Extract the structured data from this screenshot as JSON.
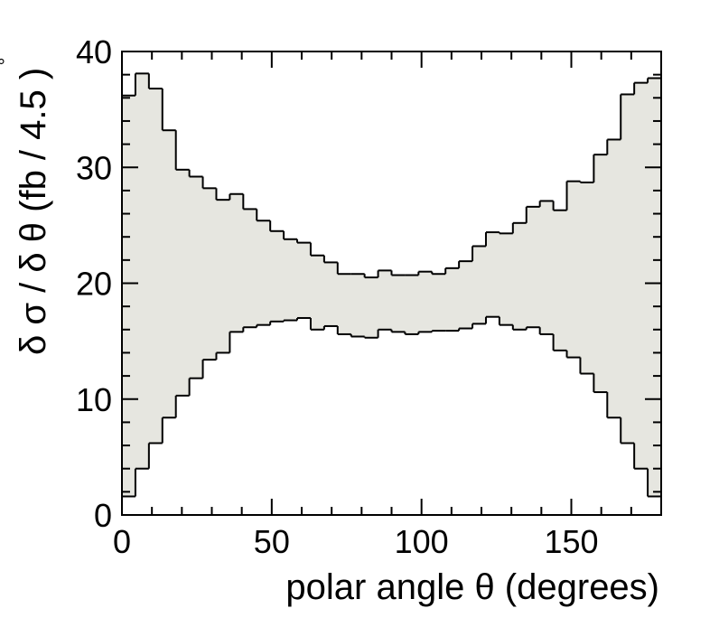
{
  "chart_data": {
    "type": "area",
    "xlabel": "polar angle θ (degrees)",
    "ylabel": "δ σ / δ θ (fb / 4.5 )",
    "ylabel_degree_mark": "°",
    "xlim": [
      0,
      180
    ],
    "ylim": [
      0,
      40
    ],
    "bin_width": 4.5,
    "x_ticks": [
      0,
      50,
      100,
      150
    ],
    "y_ticks": [
      0,
      10,
      20,
      30,
      40
    ],
    "grid": false,
    "fill_color": "#e6e6e0",
    "line_color": "#000000",
    "series": [
      {
        "role": "upper",
        "values": [
          36.2,
          38.1,
          36.8,
          33.2,
          29.8,
          29.2,
          28.2,
          27.2,
          27.7,
          26.4,
          25.4,
          24.5,
          23.8,
          23.5,
          22.4,
          21.8,
          20.8,
          20.8,
          20.5,
          21.1,
          20.7,
          20.7,
          21.0,
          20.8,
          21.3,
          21.9,
          23.2,
          24.4,
          24.3,
          25.2,
          26.6,
          27.1,
          26.3,
          28.8,
          28.7,
          31.1,
          32.4,
          36.3,
          37.3,
          37.7
        ]
      },
      {
        "role": "lower",
        "values": [
          1.6,
          4.0,
          6.2,
          8.4,
          10.3,
          11.8,
          13.4,
          14.0,
          15.8,
          16.2,
          16.4,
          16.7,
          16.8,
          17.0,
          16.0,
          16.3,
          15.6,
          15.4,
          15.3,
          16.0,
          15.8,
          15.6,
          15.8,
          15.9,
          15.9,
          16.1,
          16.5,
          17.1,
          16.4,
          16.0,
          16.2,
          15.6,
          14.2,
          13.6,
          12.2,
          10.6,
          8.4,
          6.2,
          4.0,
          1.6
        ]
      }
    ]
  }
}
